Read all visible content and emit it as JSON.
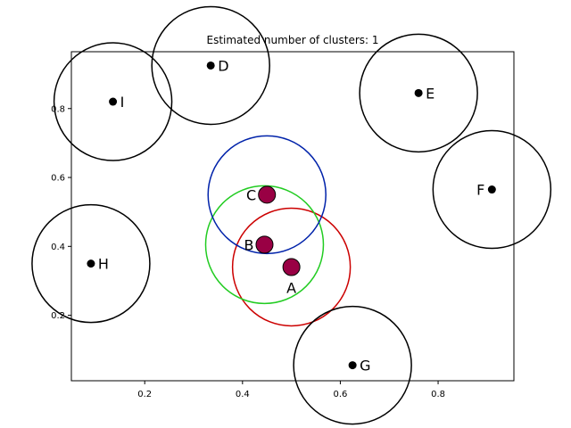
{
  "chart_data": {
    "type": "scatter",
    "title": "Estimated number of clusters: 1",
    "xlabel": "",
    "ylabel": "",
    "xlim": [
      0.05,
      0.955
    ],
    "ylim": [
      0.01,
      0.965
    ],
    "xticks": [
      0.2,
      0.4,
      0.6,
      0.8
    ],
    "yticks": [
      0.2,
      0.4,
      0.6,
      0.8
    ],
    "grid": false,
    "colors": {
      "core_fill": "#990044",
      "outline": "#000000",
      "circle_default": "#000000",
      "circle_A": "#cc0000",
      "circle_B": "#22cc22",
      "circle_C": "#0022aa"
    },
    "points": [
      {
        "label": "A",
        "x": 0.5,
        "y": 0.34,
        "core": true,
        "circle": "circle_A"
      },
      {
        "label": "B",
        "x": 0.445,
        "y": 0.405,
        "core": true,
        "circle": "circle_B"
      },
      {
        "label": "C",
        "x": 0.45,
        "y": 0.55,
        "core": true,
        "circle": "circle_C"
      },
      {
        "label": "D",
        "x": 0.335,
        "y": 0.925,
        "core": false,
        "circle": "circle_default"
      },
      {
        "label": "E",
        "x": 0.76,
        "y": 0.845,
        "core": false,
        "circle": "circle_default"
      },
      {
        "label": "F",
        "x": 0.91,
        "y": 0.565,
        "core": false,
        "circle": "circle_default"
      },
      {
        "label": "G",
        "x": 0.625,
        "y": 0.055,
        "core": false,
        "circle": "circle_default"
      },
      {
        "label": "H",
        "x": 0.09,
        "y": 0.35,
        "core": false,
        "circle": "circle_default"
      },
      {
        "label": "I",
        "x": 0.135,
        "y": 0.82,
        "core": false,
        "circle": "circle_default"
      }
    ]
  }
}
